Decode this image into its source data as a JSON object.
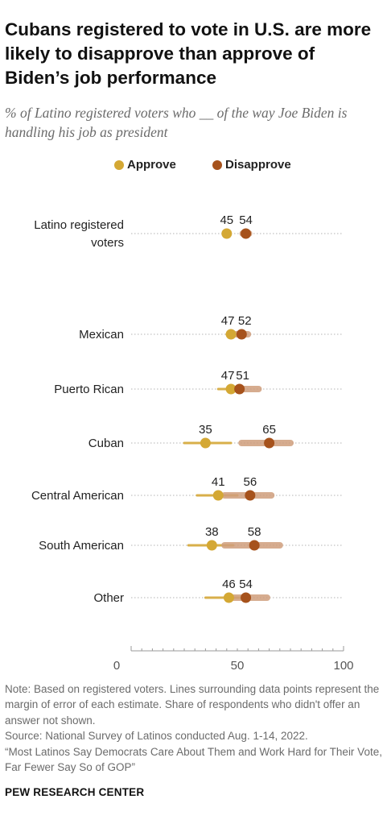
{
  "title": "Cubans registered to vote in U.S. are more likely to disapprove than approve of Biden’s job performance",
  "subtitle": "% of Latino registered voters who __ of the way Joe Biden is handling his job as president",
  "legend": {
    "approve_label": "Approve",
    "disapprove_label": "Disapprove"
  },
  "colors": {
    "approve": "#d4a834",
    "approve_band": "#d8af4a",
    "disapprove": "#a6521c",
    "disapprove_band": "#cf9e7b",
    "dotted_line": "#b3b3b3",
    "axis": "#9a9a9a"
  },
  "chart_data": {
    "type": "dot_plot",
    "xlim": [
      0,
      100
    ],
    "xticks": [
      "0",
      "50",
      "100"
    ],
    "xtick_values": [
      0,
      50,
      100
    ],
    "categories": [
      {
        "label_lines": [
          "Latino registered",
          "voters"
        ],
        "approve": 45,
        "disapprove": 54,
        "approve_moe": [
          43.5,
          46.5
        ],
        "disapprove_moe": [
          52.5,
          55.5
        ]
      },
      {
        "label_lines": [
          "Mexican"
        ],
        "approve": 47,
        "disapprove": 52,
        "approve_moe": [
          45,
          49
        ],
        "disapprove_moe": [
          49.5,
          55
        ]
      },
      {
        "label_lines": [
          "Puerto Rican"
        ],
        "approve": 47,
        "disapprove": 51,
        "approve_moe": [
          41,
          52
        ],
        "disapprove_moe": [
          46,
          60
        ]
      },
      {
        "label_lines": [
          "Cuban"
        ],
        "approve": 35,
        "disapprove": 65,
        "approve_moe": [
          25,
          47
        ],
        "disapprove_moe": [
          52,
          75
        ]
      },
      {
        "label_lines": [
          "Central American"
        ],
        "approve": 41,
        "disapprove": 56,
        "approve_moe": [
          31,
          50
        ],
        "disapprove_moe": [
          44,
          66
        ]
      },
      {
        "label_lines": [
          "South American"
        ],
        "approve": 38,
        "disapprove": 58,
        "approve_moe": [
          27,
          48
        ],
        "disapprove_moe": [
          44,
          70
        ]
      },
      {
        "label_lines": [
          "Other"
        ],
        "approve": 46,
        "disapprove": 54,
        "approve_moe": [
          35,
          54
        ],
        "disapprove_moe": [
          45,
          64
        ]
      }
    ]
  },
  "note": "Note: Based on registered voters. Lines surrounding data points represent the margin of error of each estimate. Share of respondents who didn't offer an answer not shown.",
  "source": "Source: National Survey of Latinos conducted Aug. 1-14, 2022.",
  "report": "“Most Latinos Say Democrats Care About Them and Work Hard for Their Vote, Far Fewer Say So of GOP”",
  "brand": "PEW RESEARCH CENTER"
}
